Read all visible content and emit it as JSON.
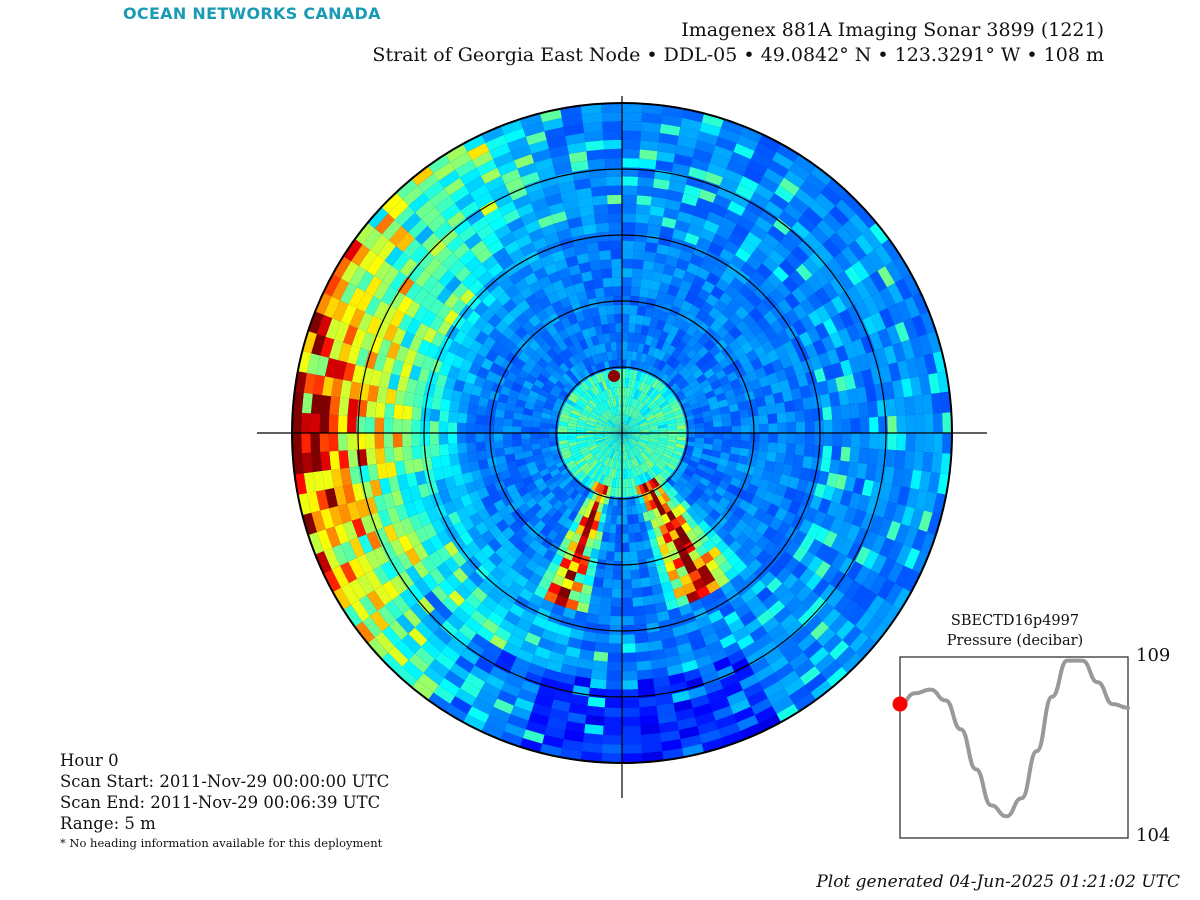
{
  "brand": "OCEAN NETWORKS CANADA",
  "title": {
    "line1": "Imagenex 881A Imaging Sonar 3899 (1221)",
    "line2": "Strait of Georgia East Node • DDL-05 • 49.0842° N • 123.3291° W • 108 m"
  },
  "info": {
    "hour": "Hour 0",
    "scan_start": "Scan Start: 2011-Nov-29 00:00:00 UTC",
    "scan_end": "Scan End: 2011-Nov-29 00:06:39 UTC",
    "range": "Range: 5 m",
    "note": "* No heading information available for this deployment"
  },
  "colors": {
    "brand": "#1a9ab5",
    "line": "#999999",
    "marker": "#ff0000"
  },
  "chart_data": [
    {
      "type": "heatmap",
      "projection": "polar",
      "range_m": 5,
      "rings": 5,
      "colormap": "jet",
      "grid": true
    },
    {
      "type": "line",
      "title": "SBECTD16p4997",
      "subtitle": "Pressure (decibar)",
      "ylim": [
        104,
        109
      ],
      "ytick_labels": [
        "109",
        "104"
      ],
      "series": [
        {
          "values": [
            107.7,
            108.0,
            108.1,
            107.8,
            107.0,
            105.9,
            104.9,
            104.6,
            105.1,
            106.4,
            107.9,
            108.9,
            108.9,
            108.3,
            107.7,
            107.6
          ]
        }
      ],
      "marker": {
        "index": 0,
        "value": 107.7
      }
    }
  ],
  "footer": "Plot generated 04-Jun-2025 01:21:02 UTC"
}
